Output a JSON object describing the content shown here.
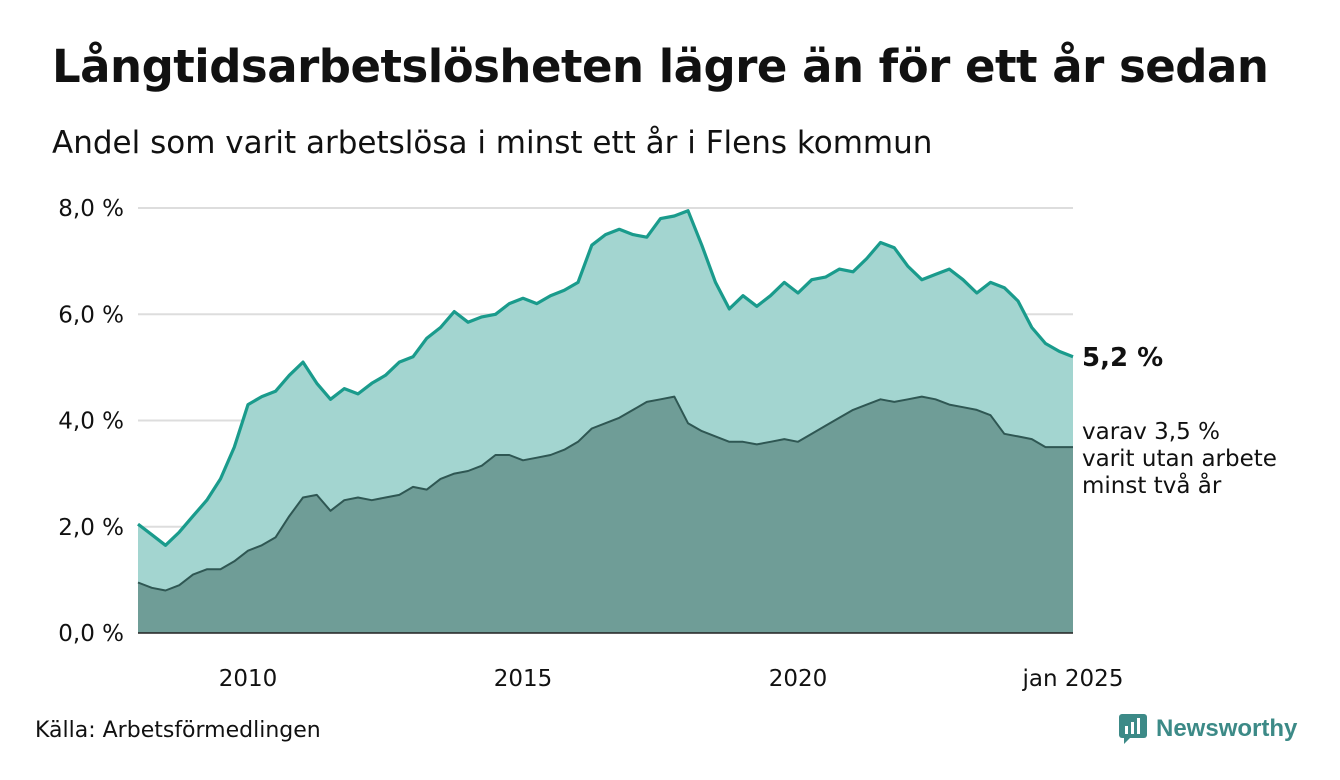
{
  "title": "Långtidsarbetslösheten lägre än för ett år sedan",
  "subtitle": "Andel som varit arbetslösa i minst ett år i Flens kommun",
  "source": "Källa: Arbetsförmedlingen",
  "brand": {
    "name": "Newsworthy",
    "icon": "newsworthy-logo-icon"
  },
  "end_labels": {
    "main": "5,2 %",
    "sub_lines": [
      "varav 3,5 %",
      "varit utan arbete",
      "minst två år"
    ]
  },
  "colors": {
    "upper_line": "#1a9b8c",
    "upper_fill": "#a3d5d0",
    "lower_line": "#2f5753",
    "lower_fill": "#6f9d97",
    "grid": "#dddddd",
    "brand": "#3c8a87"
  },
  "chart_data": {
    "type": "area",
    "title": "Långtidsarbetslösheten lägre än för ett år sedan",
    "subtitle": "Andel som varit arbetslösa i minst ett år i Flens kommun",
    "xlabel": "",
    "ylabel": "",
    "xlim": [
      "2008-01",
      "2025-01"
    ],
    "ylim": [
      0,
      8
    ],
    "grid": true,
    "legend": "none",
    "y_ticks": [
      "0,0 %",
      "2,0 %",
      "4,0 %",
      "6,0 %",
      "8,0 %"
    ],
    "y_tick_values": [
      0,
      2,
      4,
      6,
      8
    ],
    "x_ticks": [
      "2010",
      "2015",
      "2020",
      "jan 2025"
    ],
    "x_tick_values": [
      "2010-01",
      "2015-01",
      "2020-01",
      "2025-01"
    ],
    "x": [
      "2008-01",
      "2008-04",
      "2008-07",
      "2008-10",
      "2009-01",
      "2009-04",
      "2009-07",
      "2009-10",
      "2010-01",
      "2010-04",
      "2010-07",
      "2010-10",
      "2011-01",
      "2011-04",
      "2011-07",
      "2011-10",
      "2012-01",
      "2012-04",
      "2012-07",
      "2012-10",
      "2013-01",
      "2013-04",
      "2013-07",
      "2013-10",
      "2014-01",
      "2014-04",
      "2014-07",
      "2014-10",
      "2015-01",
      "2015-04",
      "2015-07",
      "2015-10",
      "2016-01",
      "2016-04",
      "2016-07",
      "2016-10",
      "2017-01",
      "2017-04",
      "2017-07",
      "2017-10",
      "2018-01",
      "2018-04",
      "2018-07",
      "2018-10",
      "2019-01",
      "2019-04",
      "2019-07",
      "2019-10",
      "2020-01",
      "2020-04",
      "2020-07",
      "2020-10",
      "2021-01",
      "2021-04",
      "2021-07",
      "2021-10",
      "2022-01",
      "2022-04",
      "2022-07",
      "2022-10",
      "2023-01",
      "2023-04",
      "2023-07",
      "2023-10",
      "2024-01",
      "2024-04",
      "2024-07",
      "2024-10",
      "2025-01"
    ],
    "series": [
      {
        "name": "",
        "values": [
          2.05,
          1.85,
          1.65,
          1.9,
          2.2,
          2.5,
          2.9,
          3.5,
          4.3,
          4.45,
          4.55,
          4.85,
          5.1,
          4.7,
          4.4,
          4.6,
          4.5,
          4.7,
          4.85,
          5.1,
          5.2,
          5.55,
          5.75,
          6.05,
          5.85,
          5.95,
          6.0,
          6.2,
          6.3,
          6.2,
          6.35,
          6.45,
          6.6,
          7.3,
          7.5,
          7.6,
          7.5,
          7.45,
          7.8,
          7.85,
          7.95,
          7.3,
          6.6,
          6.1,
          6.35,
          6.15,
          6.35,
          6.6,
          6.4,
          6.65,
          6.7,
          6.85,
          6.8,
          7.05,
          7.35,
          7.25,
          6.9,
          6.65,
          6.75,
          6.85,
          6.65,
          6.4,
          6.6,
          6.5,
          6.25,
          5.75,
          5.45,
          5.3,
          5.2
        ]
      },
      {
        "name": "",
        "values": [
          0.95,
          0.85,
          0.8,
          0.9,
          1.1,
          1.2,
          1.2,
          1.35,
          1.55,
          1.65,
          1.8,
          2.2,
          2.55,
          2.6,
          2.3,
          2.5,
          2.55,
          2.5,
          2.55,
          2.6,
          2.75,
          2.7,
          2.9,
          3.0,
          3.05,
          3.15,
          3.35,
          3.35,
          3.25,
          3.3,
          3.35,
          3.45,
          3.6,
          3.85,
          3.95,
          4.05,
          4.2,
          4.35,
          4.4,
          4.45,
          3.95,
          3.8,
          3.7,
          3.6,
          3.6,
          3.55,
          3.6,
          3.65,
          3.6,
          3.75,
          3.9,
          4.05,
          4.2,
          4.3,
          4.4,
          4.35,
          4.4,
          4.45,
          4.4,
          4.3,
          4.25,
          4.2,
          4.1,
          3.75,
          3.7,
          3.65,
          3.5,
          3.5,
          3.5
        ]
      }
    ],
    "annotations": [
      "5,2 %",
      "varav 3,5 % varit utan arbete minst två år"
    ]
  }
}
